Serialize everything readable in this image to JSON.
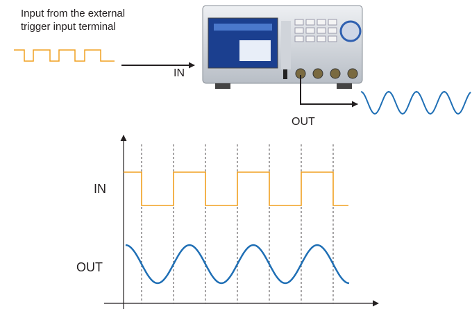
{
  "top": {
    "caption": [
      "Input from the external",
      "trigger input terminal"
    ],
    "in_label": "IN",
    "out_label": "OUT"
  },
  "timing": {
    "in_label": "IN",
    "out_label": "OUT"
  }
}
